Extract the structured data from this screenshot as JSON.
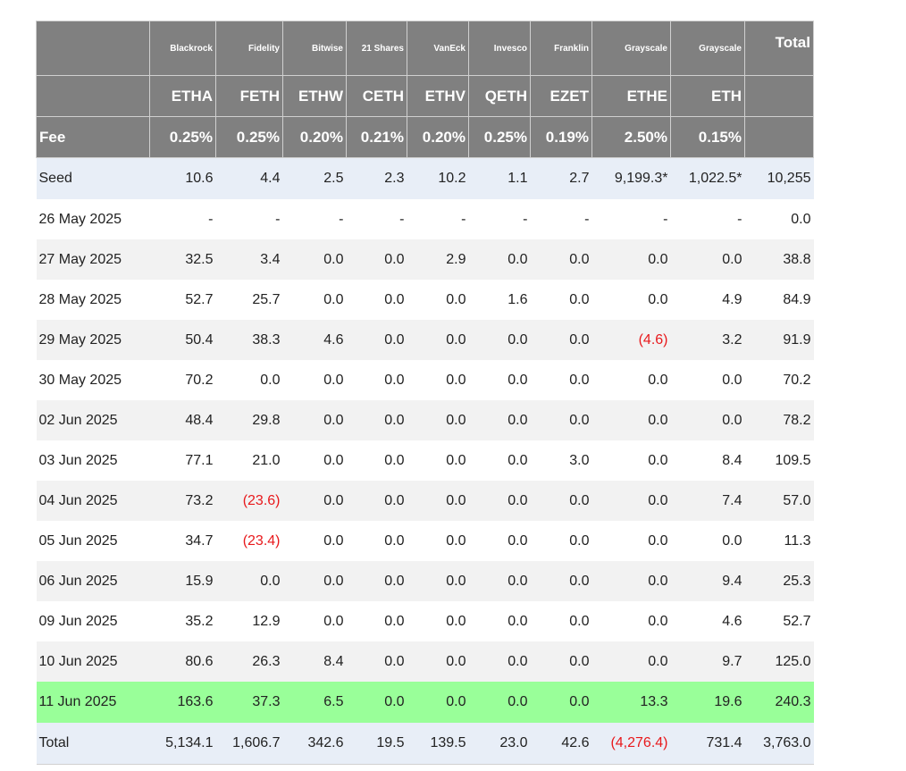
{
  "providers": [
    "",
    "Blackrock",
    "Fidelity",
    "Bitwise",
    "21 Shares",
    "VanEck",
    "Invesco",
    "Franklin",
    "Grayscale",
    "Grayscale",
    "Total"
  ],
  "tickers": [
    "",
    "ETHA",
    "FETH",
    "ETHW",
    "CETH",
    "ETHV",
    "QETH",
    "EZET",
    "ETHE",
    "ETH",
    ""
  ],
  "fees": [
    "Fee",
    "0.25%",
    "0.25%",
    "0.20%",
    "0.21%",
    "0.20%",
    "0.25%",
    "0.19%",
    "2.50%",
    "0.15%",
    ""
  ],
  "rows": [
    [
      "Seed",
      "10.6",
      "4.4",
      "2.5",
      "2.3",
      "10.2",
      "1.1",
      "2.7",
      "9,199.3*",
      "1,022.5*",
      "10,255"
    ],
    [
      "26 May 2025",
      "-",
      "-",
      "-",
      "-",
      "-",
      "-",
      "-",
      "-",
      "-",
      "0.0"
    ],
    [
      "27 May 2025",
      "32.5",
      "3.4",
      "0.0",
      "0.0",
      "2.9",
      "0.0",
      "0.0",
      "0.0",
      "0.0",
      "38.8"
    ],
    [
      "28 May 2025",
      "52.7",
      "25.7",
      "0.0",
      "0.0",
      "0.0",
      "1.6",
      "0.0",
      "0.0",
      "4.9",
      "84.9"
    ],
    [
      "29 May 2025",
      "50.4",
      "38.3",
      "4.6",
      "0.0",
      "0.0",
      "0.0",
      "0.0",
      "(4.6)",
      "3.2",
      "91.9"
    ],
    [
      "30 May 2025",
      "70.2",
      "0.0",
      "0.0",
      "0.0",
      "0.0",
      "0.0",
      "0.0",
      "0.0",
      "0.0",
      "70.2"
    ],
    [
      "02 Jun 2025",
      "48.4",
      "29.8",
      "0.0",
      "0.0",
      "0.0",
      "0.0",
      "0.0",
      "0.0",
      "0.0",
      "78.2"
    ],
    [
      "03 Jun 2025",
      "77.1",
      "21.0",
      "0.0",
      "0.0",
      "0.0",
      "0.0",
      "3.0",
      "0.0",
      "8.4",
      "109.5"
    ],
    [
      "04 Jun 2025",
      "73.2",
      "(23.6)",
      "0.0",
      "0.0",
      "0.0",
      "0.0",
      "0.0",
      "0.0",
      "7.4",
      "57.0"
    ],
    [
      "05 Jun 2025",
      "34.7",
      "(23.4)",
      "0.0",
      "0.0",
      "0.0",
      "0.0",
      "0.0",
      "0.0",
      "0.0",
      "11.3"
    ],
    [
      "06 Jun 2025",
      "15.9",
      "0.0",
      "0.0",
      "0.0",
      "0.0",
      "0.0",
      "0.0",
      "0.0",
      "9.4",
      "25.3"
    ],
    [
      "09 Jun 2025",
      "35.2",
      "12.9",
      "0.0",
      "0.0",
      "0.0",
      "0.0",
      "0.0",
      "0.0",
      "4.6",
      "52.7"
    ],
    [
      "10 Jun 2025",
      "80.6",
      "26.3",
      "8.4",
      "0.0",
      "0.0",
      "0.0",
      "0.0",
      "0.0",
      "9.7",
      "125.0"
    ],
    [
      "11 Jun 2025",
      "163.6",
      "37.3",
      "6.5",
      "0.0",
      "0.0",
      "0.0",
      "0.0",
      "13.3",
      "19.6",
      "240.3"
    ],
    [
      "Total",
      "5,134.1",
      "1,606.7",
      "342.6",
      "19.5",
      "139.5",
      "23.0",
      "42.6",
      "(4,276.4)",
      "731.4",
      "3,763.0"
    ]
  ],
  "colors": {
    "header_bg": "#808080",
    "seed_bg": "#e8eef7",
    "stripe_bg": "#f2f2f2",
    "highlight_bg": "#99ff99",
    "negative": "#e8191c"
  }
}
